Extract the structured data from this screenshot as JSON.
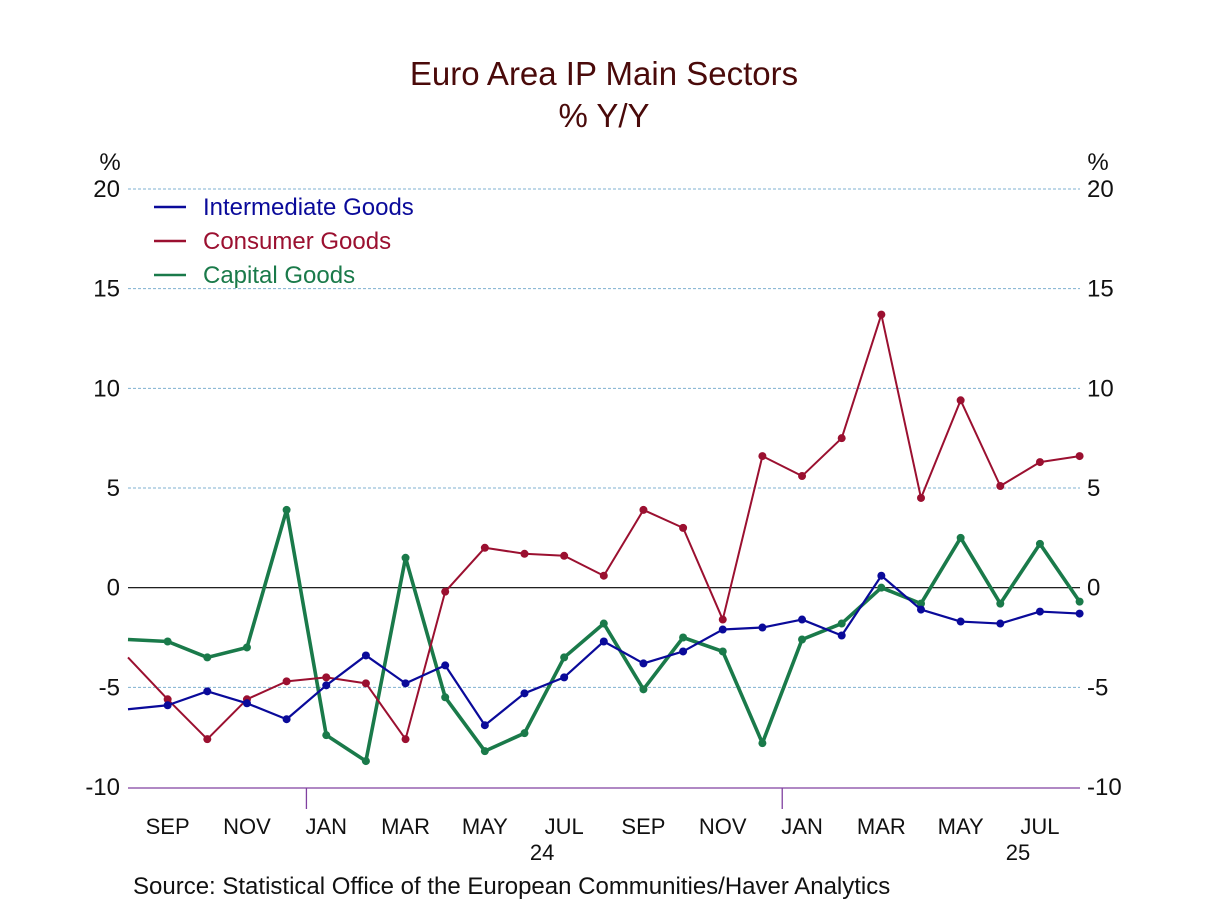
{
  "chart_data": {
    "type": "line",
    "title": "Euro Area IP Main Sectors",
    "subtitle": "% Y/Y",
    "ylabel_left": "%",
    "ylabel_right": "%",
    "xlabel": "",
    "ylim": [
      -10,
      20
    ],
    "yticks": [
      20,
      15,
      10,
      5,
      0,
      -5,
      -10
    ],
    "grid": true,
    "legend_position": "top-left",
    "x": [
      "Aug 2023",
      "Sep 2023",
      "Oct 2023",
      "Nov 2023",
      "Dec 2023",
      "Jan 2024",
      "Feb 2024",
      "Mar 2024",
      "Apr 2024",
      "May 2024",
      "Jun 2024",
      "Jul 2024",
      "Aug 2024",
      "Sep 2024",
      "Oct 2024",
      "Nov 2024",
      "Dec 2024",
      "Jan 2025",
      "Feb 2025",
      "Mar 2025",
      "Apr 2025",
      "May 2025",
      "Jun 2025",
      "Jul 2025",
      "Aug 2025"
    ],
    "x_tick_labels": [
      {
        "label": "SEP",
        "month_index": 1
      },
      {
        "label": "NOV",
        "month_index": 3
      },
      {
        "label": "JAN",
        "month_index": 5
      },
      {
        "label": "MAR",
        "month_index": 7
      },
      {
        "label": "MAY",
        "month_index": 9
      },
      {
        "label": "JUL",
        "month_index": 11
      },
      {
        "label": "SEP",
        "month_index": 13
      },
      {
        "label": "NOV",
        "month_index": 15
      },
      {
        "label": "JAN",
        "month_index": 17
      },
      {
        "label": "MAR",
        "month_index": 19
      },
      {
        "label": "MAY",
        "month_index": 21
      },
      {
        "label": "JUL",
        "month_index": 23
      }
    ],
    "year_labels": [
      {
        "label": "24",
        "month_index": 11
      },
      {
        "label": "25",
        "month_index": 23
      }
    ],
    "year_boundaries": [
      4.5,
      16.5
    ],
    "series": [
      {
        "name": "Intermediate Goods",
        "color": "#0a0a9a",
        "values": [
          -6.1,
          -5.9,
          -5.2,
          -5.8,
          -6.6,
          -4.9,
          -3.4,
          -4.8,
          -3.9,
          -6.9,
          -5.3,
          -4.5,
          -2.7,
          -3.8,
          -3.2,
          -2.1,
          -2.0,
          -1.6,
          -2.4,
          0.6,
          -1.1,
          -1.7,
          -1.8,
          -1.2,
          -1.3
        ]
      },
      {
        "name": "Consumer Goods",
        "color": "#9b1030",
        "values": [
          -3.5,
          -5.6,
          -7.6,
          -5.6,
          -4.7,
          -4.5,
          -4.8,
          -7.6,
          -0.2,
          2.0,
          1.7,
          1.6,
          0.6,
          3.9,
          3.0,
          -1.6,
          6.6,
          5.6,
          7.5,
          13.7,
          4.5,
          9.4,
          5.1,
          6.3,
          6.6
        ]
      },
      {
        "name": "Capital Goods",
        "color": "#1a7a4a",
        "values": [
          -2.6,
          -2.7,
          -3.5,
          -3.0,
          3.9,
          -7.4,
          -8.7,
          1.5,
          -5.5,
          -8.2,
          -7.3,
          -3.5,
          -1.8,
          -5.1,
          -2.5,
          -3.2,
          -7.8,
          -2.6,
          -1.8,
          0.0,
          -0.8,
          2.5,
          -0.8,
          2.2,
          -0.7
        ]
      }
    ],
    "source": "Source:  Statistical Office of the European Communities/Haver Analytics"
  },
  "colors": {
    "title": "#4a0a0a",
    "grid": "#7fb0d0",
    "axis": "#8040a0",
    "zero_line": "#000000"
  }
}
